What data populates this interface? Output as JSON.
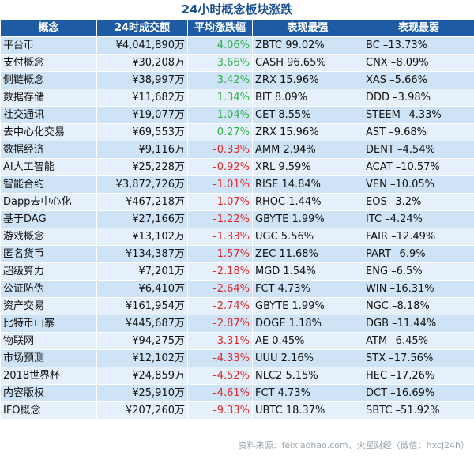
{
  "title": "24小时概念板块涨跌",
  "headers": [
    "概念",
    "24时成交额",
    "平均涨跌幅",
    "表现最强",
    "表现最弱"
  ],
  "colors": {
    "header_bg": "#1e5ba5",
    "positive": "#2db24a",
    "negative": "#e02626",
    "row_odd": "#cfe3f6",
    "row_even": "#e6f0fa"
  },
  "rows": [
    {
      "concept": "平台币",
      "volume": "¥4,041,890万",
      "change": "4.06%",
      "strongest": "ZBTC 99.02%",
      "weakest": "BC –13.73%",
      "direction": "up"
    },
    {
      "concept": "支付概念",
      "volume": "¥30,208万",
      "change": "3.66%",
      "strongest": "CASH 96.65%",
      "weakest": "CNX –8.09%",
      "direction": "up"
    },
    {
      "concept": "侧链概念",
      "volume": "¥38,997万",
      "change": "3.42%",
      "strongest": "ZRX 15.96%",
      "weakest": "XAS –5.66%",
      "direction": "up"
    },
    {
      "concept": "数据存储",
      "volume": "¥11,682万",
      "change": "1.34%",
      "strongest": "BIT 8.09%",
      "weakest": "DDD –3.98%",
      "direction": "up"
    },
    {
      "concept": "社交通讯",
      "volume": "¥19,077万",
      "change": "1.04%",
      "strongest": "CET 8.55%",
      "weakest": "STEEM –4.33%",
      "direction": "up"
    },
    {
      "concept": "去中心化交易",
      "volume": "¥69,553万",
      "change": "0.27%",
      "strongest": "ZRX 15.96%",
      "weakest": "AST –9.68%",
      "direction": "up"
    },
    {
      "concept": "数据经济",
      "volume": "¥9,116万",
      "change": "–0.33%",
      "strongest": "AMM 2.94%",
      "weakest": "DENT –4.54%",
      "direction": "down"
    },
    {
      "concept": "AI人工智能",
      "volume": "¥25,228万",
      "change": "–0.92%",
      "strongest": "XRL 9.59%",
      "weakest": "ACAT –10.57%",
      "direction": "down"
    },
    {
      "concept": "智能合约",
      "volume": "¥3,872,726万",
      "change": "–1.01%",
      "strongest": "RISE 14.84%",
      "weakest": "VEN –10.05%",
      "direction": "down"
    },
    {
      "concept": "Dapp去中心化",
      "volume": "¥467,218万",
      "change": "–1.07%",
      "strongest": "RHOC 1.44%",
      "weakest": "EOS –3.2%",
      "direction": "down"
    },
    {
      "concept": "基于DAG",
      "volume": "¥27,166万",
      "change": "–1.22%",
      "strongest": "GBYTE 1.99%",
      "weakest": "ITC –4.24%",
      "direction": "down"
    },
    {
      "concept": "游戏概念",
      "volume": "¥13,102万",
      "change": "–1.33%",
      "strongest": "UGC 5.56%",
      "weakest": "FAIR –12.49%",
      "direction": "down"
    },
    {
      "concept": "匿名货币",
      "volume": "¥134,387万",
      "change": "–1.57%",
      "strongest": "ZEC 11.68%",
      "weakest": "PART –6.9%",
      "direction": "down"
    },
    {
      "concept": "超级算力",
      "volume": "¥7,201万",
      "change": "–2.18%",
      "strongest": "MGD 1.54%",
      "weakest": "ENG –6.5%",
      "direction": "down"
    },
    {
      "concept": "公证防伪",
      "volume": "¥6,410万",
      "change": "–2.64%",
      "strongest": "FCT 4.73%",
      "weakest": "WIN –16.31%",
      "direction": "down"
    },
    {
      "concept": "资产交易",
      "volume": "¥161,954万",
      "change": "–2.74%",
      "strongest": "GBYTE 1.99%",
      "weakest": "NGC –8.18%",
      "direction": "down"
    },
    {
      "concept": "比特币山寨",
      "volume": "¥445,687万",
      "change": "–2.87%",
      "strongest": "DOGE 1.18%",
      "weakest": "DGB –11.44%",
      "direction": "down"
    },
    {
      "concept": "物联网",
      "volume": "¥94,275万",
      "change": "–3.31%",
      "strongest": "AE 0.45%",
      "weakest": "ATM –6.45%",
      "direction": "down"
    },
    {
      "concept": "市场预测",
      "volume": "¥12,102万",
      "change": "–4.33%",
      "strongest": "UUU 2.16%",
      "weakest": "STX –17.56%",
      "direction": "down"
    },
    {
      "concept": "2018世界杯",
      "volume": "¥24,859万",
      "change": "–4.52%",
      "strongest": "NLC2 5.15%",
      "weakest": "HEC –17.26%",
      "direction": "down"
    },
    {
      "concept": "内容版权",
      "volume": "¥25,910万",
      "change": "–4.61%",
      "strongest": "FCT 4.73%",
      "weakest": "DCT –16.69%",
      "direction": "down"
    },
    {
      "concept": "IFO概念",
      "volume": "¥207,260万",
      "change": "–9.33%",
      "strongest": "UBTC 18.37%",
      "weakest": "SBTC –51.92%",
      "direction": "down"
    }
  ],
  "source": "资料来源：feixiaohao.com、火星财经（微信：hxcj24h）"
}
